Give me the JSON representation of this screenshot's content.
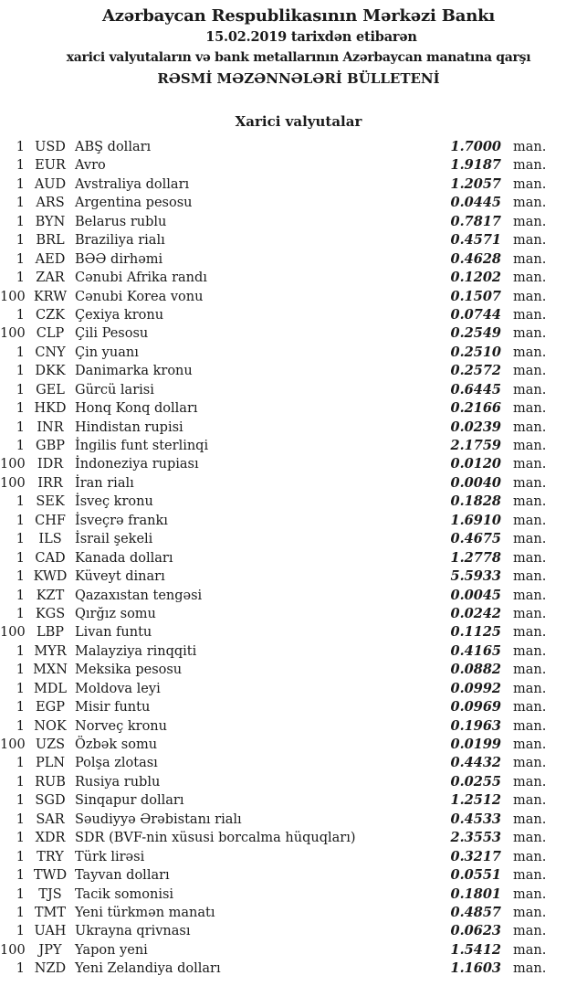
{
  "colors": {
    "text": "#1a1a1a",
    "background": "#ffffff"
  },
  "header": {
    "title": "Azərbaycan Respublikasının Mərkəzi Bankı",
    "date_line": "15.02.2019 tarixdən etibarən",
    "subtitle": "xarici valyutaların və bank metallarının Azərbaycan manatına qarşı",
    "bulletin_title": "RƏSMİ MƏZƏNNƏLƏRİ BÜLLETENİ"
  },
  "section": {
    "title": "Xarici valyutalar"
  },
  "unit_suffix": "man.",
  "rates": [
    {
      "qty": "1",
      "code": "USD",
      "name": "ABŞ dolları",
      "rate": "1.7000"
    },
    {
      "qty": "1",
      "code": "EUR",
      "name": "Avro",
      "rate": "1.9187"
    },
    {
      "qty": "1",
      "code": "AUD",
      "name": "Avstraliya dolları",
      "rate": "1.2057"
    },
    {
      "qty": "1",
      "code": "ARS",
      "name": "Argentina pesosu",
      "rate": "0.0445"
    },
    {
      "qty": "1",
      "code": "BYN",
      "name": "Belarus rublu",
      "rate": "0.7817"
    },
    {
      "qty": "1",
      "code": "BRL",
      "name": "Braziliya rialı",
      "rate": "0.4571"
    },
    {
      "qty": "1",
      "code": "AED",
      "name": "BƏƏ dirhəmi",
      "rate": "0.4628"
    },
    {
      "qty": "1",
      "code": "ZAR",
      "name": "Cənubi Afrika randı",
      "rate": "0.1202"
    },
    {
      "qty": "100",
      "code": "KRW",
      "name": "Cənubi Korea vonu",
      "rate": "0.1507"
    },
    {
      "qty": "1",
      "code": "CZK",
      "name": "Çexiya kronu",
      "rate": "0.0744"
    },
    {
      "qty": "100",
      "code": "CLP",
      "name": "Çili Pesosu",
      "rate": "0.2549"
    },
    {
      "qty": "1",
      "code": "CNY",
      "name": "Çin yuanı",
      "rate": "0.2510"
    },
    {
      "qty": "1",
      "code": "DKK",
      "name": "Danimarka kronu",
      "rate": "0.2572"
    },
    {
      "qty": "1",
      "code": "GEL",
      "name": "Gürcü larisi",
      "rate": "0.6445"
    },
    {
      "qty": "1",
      "code": "HKD",
      "name": "Honq Konq dolları",
      "rate": "0.2166"
    },
    {
      "qty": "1",
      "code": "INR",
      "name": "Hindistan rupisi",
      "rate": "0.0239"
    },
    {
      "qty": "1",
      "code": "GBP",
      "name": "İngilis funt sterlinqi",
      "rate": "2.1759"
    },
    {
      "qty": "100",
      "code": "IDR",
      "name": "İndoneziya rupiası",
      "rate": "0.0120"
    },
    {
      "qty": "100",
      "code": "IRR",
      "name": "İran rialı",
      "rate": "0.0040"
    },
    {
      "qty": "1",
      "code": "SEK",
      "name": "İsveç kronu",
      "rate": "0.1828"
    },
    {
      "qty": "1",
      "code": "CHF",
      "name": "İsveçrə frankı",
      "rate": "1.6910"
    },
    {
      "qty": "1",
      "code": "ILS",
      "name": "İsrail şekeli",
      "rate": "0.4675"
    },
    {
      "qty": "1",
      "code": "CAD",
      "name": "Kanada dolları",
      "rate": "1.2778"
    },
    {
      "qty": "1",
      "code": "KWD",
      "name": "Küveyt dinarı",
      "rate": "5.5933"
    },
    {
      "qty": "1",
      "code": "KZT",
      "name": "Qazaxıstan tengəsi",
      "rate": "0.0045"
    },
    {
      "qty": "1",
      "code": "KGS",
      "name": "Qırğız somu",
      "rate": "0.0242"
    },
    {
      "qty": "100",
      "code": "LBP",
      "name": "Livan funtu",
      "rate": "0.1125"
    },
    {
      "qty": "1",
      "code": "MYR",
      "name": "Malayziya rinqqiti",
      "rate": "0.4165"
    },
    {
      "qty": "1",
      "code": "MXN",
      "name": "Meksika pesosu",
      "rate": "0.0882"
    },
    {
      "qty": "1",
      "code": "MDL",
      "name": "Moldova leyi",
      "rate": "0.0992"
    },
    {
      "qty": "1",
      "code": "EGP",
      "name": "Misir funtu",
      "rate": "0.0969"
    },
    {
      "qty": "1",
      "code": "NOK",
      "name": "Norveç kronu",
      "rate": "0.1963"
    },
    {
      "qty": "100",
      "code": "UZS",
      "name": "Özbək somu",
      "rate": "0.0199"
    },
    {
      "qty": "1",
      "code": "PLN",
      "name": "Polşa zlotası",
      "rate": "0.4432"
    },
    {
      "qty": "1",
      "code": "RUB",
      "name": "Rusiya rublu",
      "rate": "0.0255"
    },
    {
      "qty": "1",
      "code": "SGD",
      "name": "Sinqapur dolları",
      "rate": "1.2512"
    },
    {
      "qty": "1",
      "code": "SAR",
      "name": "Səudiyyə Ərəbistanı rialı",
      "rate": "0.4533"
    },
    {
      "qty": "1",
      "code": "XDR",
      "name": "SDR (BVF-nin xüsusi borcalma hüquqları)",
      "rate": "2.3553"
    },
    {
      "qty": "1",
      "code": "TRY",
      "name": "Türk lirəsi",
      "rate": "0.3217"
    },
    {
      "qty": "1",
      "code": "TWD",
      "name": "Tayvan dolları",
      "rate": "0.0551"
    },
    {
      "qty": "1",
      "code": "TJS",
      "name": "Tacik somonisi",
      "rate": "0.1801"
    },
    {
      "qty": "1",
      "code": "TMT",
      "name": "Yeni türkmən manatı",
      "rate": "0.4857"
    },
    {
      "qty": "1",
      "code": "UAH",
      "name": "Ukrayna qrivnası",
      "rate": "0.0623"
    },
    {
      "qty": "100",
      "code": "JPY",
      "name": "Yapon yeni",
      "rate": "1.5412"
    },
    {
      "qty": "1",
      "code": "NZD",
      "name": "Yeni Zelandiya dolları",
      "rate": "1.1603"
    }
  ]
}
